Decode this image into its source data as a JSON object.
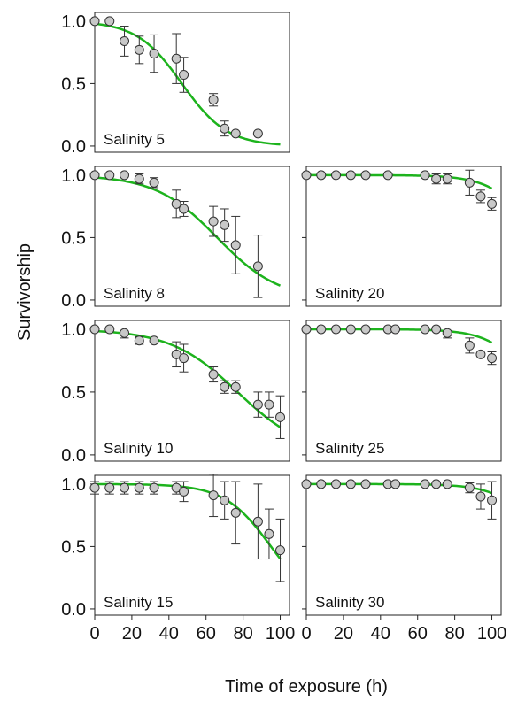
{
  "figure": {
    "ylabel": "Survivorship",
    "xlabel": "Time of exposure (h)"
  },
  "chart_data": [
    {
      "type": "scatter",
      "label": "Salinity 5",
      "xlim": [
        0,
        105
      ],
      "ylim": [
        -0.05,
        1.07
      ],
      "x_ticks": [
        0,
        20,
        40,
        60,
        80,
        100
      ],
      "y_ticks": [
        "0.0",
        "0.5",
        "1.0"
      ],
      "curve": {
        "type": "logistic",
        "x50": 47,
        "k": 0.082
      },
      "points": [
        {
          "x": 0,
          "y": 1.0,
          "err": 0
        },
        {
          "x": 8,
          "y": 1.0,
          "err": 0
        },
        {
          "x": 16,
          "y": 0.84,
          "err": 0.12
        },
        {
          "x": 24,
          "y": 0.77,
          "err": 0.11
        },
        {
          "x": 32,
          "y": 0.74,
          "err": 0.15
        },
        {
          "x": 44,
          "y": 0.7,
          "err": 0.2
        },
        {
          "x": 48,
          "y": 0.57,
          "err": 0.14
        },
        {
          "x": 64,
          "y": 0.37,
          "err": 0.05
        },
        {
          "x": 70,
          "y": 0.14,
          "err": 0.06
        },
        {
          "x": 76,
          "y": 0.1,
          "err": 0
        },
        {
          "x": 88,
          "y": 0.1,
          "err": 0
        }
      ]
    },
    {
      "type": "scatter",
      "label": "Salinity 8",
      "xlim": [
        0,
        105
      ],
      "ylim": [
        -0.05,
        1.07
      ],
      "x_ticks": [
        0,
        20,
        40,
        60,
        80,
        100
      ],
      "y_ticks": [
        "0.0",
        "0.5",
        "1.0"
      ],
      "curve": {
        "type": "logistic",
        "x50": 66,
        "k": 0.06
      },
      "points": [
        {
          "x": 0,
          "y": 1.0,
          "err": 0
        },
        {
          "x": 8,
          "y": 1.0,
          "err": 0
        },
        {
          "x": 16,
          "y": 1.0,
          "err": 0
        },
        {
          "x": 24,
          "y": 0.97,
          "err": 0.04
        },
        {
          "x": 32,
          "y": 0.94,
          "err": 0.04
        },
        {
          "x": 44,
          "y": 0.77,
          "err": 0.11
        },
        {
          "x": 48,
          "y": 0.73,
          "err": 0.06
        },
        {
          "x": 64,
          "y": 0.63,
          "err": 0.12
        },
        {
          "x": 70,
          "y": 0.6,
          "err": 0.13
        },
        {
          "x": 76,
          "y": 0.44,
          "err": 0.23
        },
        {
          "x": 88,
          "y": 0.27,
          "err": 0.25
        }
      ]
    },
    {
      "type": "scatter",
      "label": "Salinity 20",
      "xlim": [
        0,
        105
      ],
      "ylim": [
        -0.05,
        1.07
      ],
      "x_ticks": [
        0,
        20,
        40,
        60,
        80,
        100
      ],
      "y_ticks": [
        "0.0",
        "0.5",
        "1.0"
      ],
      "curve": {
        "type": "logistic",
        "x50": 125,
        "k": 0.085
      },
      "points": [
        {
          "x": 0,
          "y": 1.0,
          "err": 0
        },
        {
          "x": 8,
          "y": 1.0,
          "err": 0
        },
        {
          "x": 16,
          "y": 1.0,
          "err": 0
        },
        {
          "x": 24,
          "y": 1.0,
          "err": 0
        },
        {
          "x": 32,
          "y": 1.0,
          "err": 0
        },
        {
          "x": 44,
          "y": 1.0,
          "err": 0
        },
        {
          "x": 64,
          "y": 1.0,
          "err": 0
        },
        {
          "x": 70,
          "y": 0.97,
          "err": 0.04
        },
        {
          "x": 76,
          "y": 0.97,
          "err": 0.04
        },
        {
          "x": 88,
          "y": 0.94,
          "err": 0.1
        },
        {
          "x": 94,
          "y": 0.83,
          "err": 0.05
        },
        {
          "x": 100,
          "y": 0.77,
          "err": 0.05
        }
      ]
    },
    {
      "type": "scatter",
      "label": "Salinity 10",
      "xlim": [
        0,
        105
      ],
      "ylim": [
        -0.05,
        1.07
      ],
      "x_ticks": [
        0,
        20,
        40,
        60,
        80,
        100
      ],
      "y_ticks": [
        "0.0",
        "0.5",
        "1.0"
      ],
      "curve": {
        "type": "logistic",
        "x50": 77,
        "k": 0.055
      },
      "points": [
        {
          "x": 0,
          "y": 1.0,
          "err": 0
        },
        {
          "x": 8,
          "y": 1.0,
          "err": 0
        },
        {
          "x": 16,
          "y": 0.97,
          "err": 0.04
        },
        {
          "x": 24,
          "y": 0.91,
          "err": 0.03
        },
        {
          "x": 32,
          "y": 0.91,
          "err": 0
        },
        {
          "x": 44,
          "y": 0.8,
          "err": 0.1
        },
        {
          "x": 48,
          "y": 0.77,
          "err": 0.11
        },
        {
          "x": 64,
          "y": 0.64,
          "err": 0.06
        },
        {
          "x": 70,
          "y": 0.54,
          "err": 0.05
        },
        {
          "x": 76,
          "y": 0.54,
          "err": 0.05
        },
        {
          "x": 88,
          "y": 0.4,
          "err": 0.1
        },
        {
          "x": 94,
          "y": 0.4,
          "err": 0.1
        },
        {
          "x": 100,
          "y": 0.3,
          "err": 0.17
        }
      ]
    },
    {
      "type": "scatter",
      "label": "Salinity 25",
      "xlim": [
        0,
        105
      ],
      "ylim": [
        -0.05,
        1.07
      ],
      "x_ticks": [
        0,
        20,
        40,
        60,
        80,
        100
      ],
      "y_ticks": [
        "0.0",
        "0.5",
        "1.0"
      ],
      "curve": {
        "type": "logistic",
        "x50": 125,
        "k": 0.085
      },
      "points": [
        {
          "x": 0,
          "y": 1.0,
          "err": 0
        },
        {
          "x": 8,
          "y": 1.0,
          "err": 0
        },
        {
          "x": 16,
          "y": 1.0,
          "err": 0
        },
        {
          "x": 24,
          "y": 1.0,
          "err": 0
        },
        {
          "x": 32,
          "y": 1.0,
          "err": 0
        },
        {
          "x": 44,
          "y": 1.0,
          "err": 0
        },
        {
          "x": 48,
          "y": 1.0,
          "err": 0
        },
        {
          "x": 64,
          "y": 1.0,
          "err": 0
        },
        {
          "x": 70,
          "y": 1.0,
          "err": 0
        },
        {
          "x": 76,
          "y": 0.97,
          "err": 0.04
        },
        {
          "x": 88,
          "y": 0.87,
          "err": 0.06
        },
        {
          "x": 94,
          "y": 0.8,
          "err": 0
        },
        {
          "x": 100,
          "y": 0.77,
          "err": 0.05
        }
      ]
    },
    {
      "type": "scatter",
      "label": "Salinity 15",
      "xlim": [
        0,
        105
      ],
      "ylim": [
        -0.05,
        1.07
      ],
      "x_ticks": [
        0,
        20,
        40,
        60,
        80,
        100
      ],
      "y_ticks": [
        "0.0",
        "0.5",
        "1.0"
      ],
      "curve": {
        "type": "logistic",
        "x50": 95,
        "k": 0.08
      },
      "points": [
        {
          "x": 0,
          "y": 0.97,
          "err": 0.05
        },
        {
          "x": 8,
          "y": 0.97,
          "err": 0.05
        },
        {
          "x": 16,
          "y": 0.97,
          "err": 0.05
        },
        {
          "x": 24,
          "y": 0.97,
          "err": 0.05
        },
        {
          "x": 32,
          "y": 0.97,
          "err": 0.05
        },
        {
          "x": 44,
          "y": 0.97,
          "err": 0.05
        },
        {
          "x": 48,
          "y": 0.94,
          "err": 0.08
        },
        {
          "x": 64,
          "y": 0.91,
          "err": 0.17
        },
        {
          "x": 70,
          "y": 0.87,
          "err": 0.15
        },
        {
          "x": 76,
          "y": 0.77,
          "err": 0.25
        },
        {
          "x": 88,
          "y": 0.7,
          "err": 0.3
        },
        {
          "x": 94,
          "y": 0.6,
          "err": 0.2
        },
        {
          "x": 100,
          "y": 0.47,
          "err": 0.25
        }
      ]
    },
    {
      "type": "scatter",
      "label": "Salinity 30",
      "xlim": [
        0,
        105
      ],
      "ylim": [
        -0.05,
        1.07
      ],
      "x_ticks": [
        0,
        20,
        40,
        60,
        80,
        100
      ],
      "y_ticks": [
        "0.0",
        "0.5",
        "1.0"
      ],
      "curve": {
        "type": "logistic",
        "x50": 130,
        "k": 0.085
      },
      "points": [
        {
          "x": 0,
          "y": 1.0,
          "err": 0
        },
        {
          "x": 8,
          "y": 1.0,
          "err": 0
        },
        {
          "x": 16,
          "y": 1.0,
          "err": 0
        },
        {
          "x": 24,
          "y": 1.0,
          "err": 0
        },
        {
          "x": 32,
          "y": 1.0,
          "err": 0
        },
        {
          "x": 44,
          "y": 1.0,
          "err": 0
        },
        {
          "x": 48,
          "y": 1.0,
          "err": 0
        },
        {
          "x": 64,
          "y": 1.0,
          "err": 0
        },
        {
          "x": 70,
          "y": 1.0,
          "err": 0
        },
        {
          "x": 76,
          "y": 1.0,
          "err": 0
        },
        {
          "x": 88,
          "y": 0.97,
          "err": 0.04
        },
        {
          "x": 94,
          "y": 0.9,
          "err": 0.1
        },
        {
          "x": 100,
          "y": 0.87,
          "err": 0.15
        }
      ]
    }
  ],
  "colors": {
    "curve": "#1db31d",
    "marker_fill": "#c8c8c8",
    "marker_edge": "#333333",
    "axis": "#222222"
  }
}
